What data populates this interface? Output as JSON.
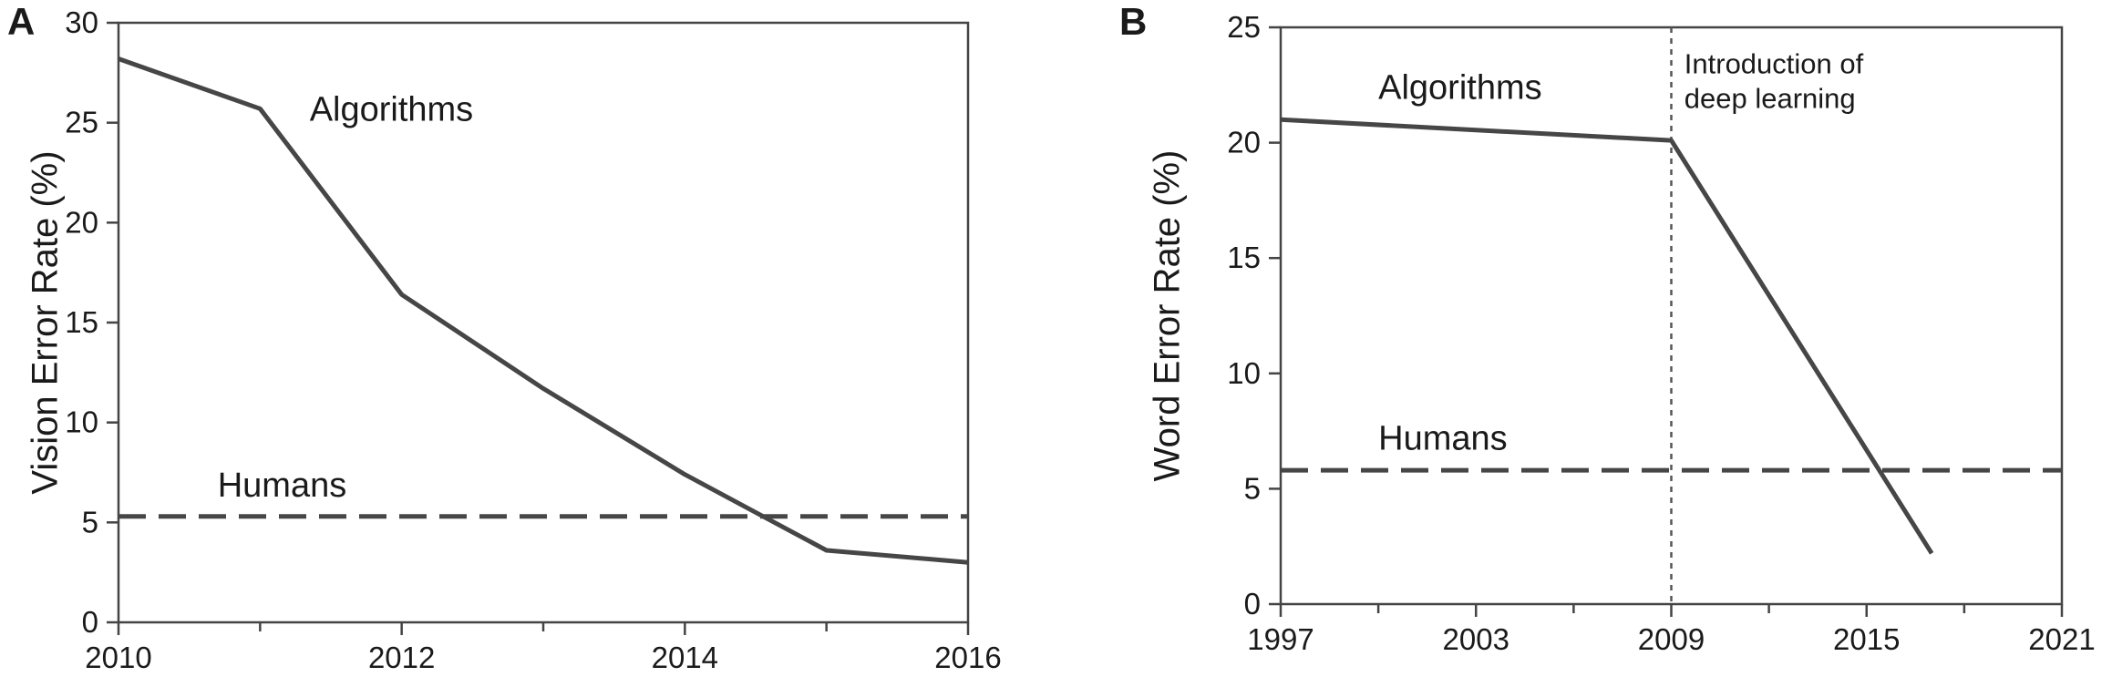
{
  "chart_data": [
    {
      "type": "line",
      "panel": "A",
      "ylabel": "Vision Error Rate (%)",
      "xlim": [
        2010,
        2016
      ],
      "ylim": [
        0,
        30
      ],
      "x_major_ticks": [
        2010,
        2012,
        2014,
        2016
      ],
      "x_minor_ticks": [
        2011,
        2013,
        2015
      ],
      "y_ticks": [
        0,
        5,
        10,
        15,
        20,
        25,
        30
      ],
      "series": [
        {
          "name": "Algorithms",
          "style": "solid",
          "color": "#464646",
          "x": [
            2010,
            2011,
            2012,
            2013,
            2014,
            2015,
            2016
          ],
          "y": [
            28.2,
            25.7,
            16.4,
            11.7,
            7.4,
            3.6,
            3.0
          ]
        },
        {
          "name": "Humans",
          "style": "dashed",
          "color": "#464646",
          "x": [
            2010,
            2016
          ],
          "y": [
            5.3,
            5.3
          ]
        }
      ],
      "labels": [
        {
          "text": "Algorithms",
          "x": 2011.35,
          "y": 25.1
        },
        {
          "text": "Humans",
          "x": 2010.7,
          "y": 6.3
        }
      ]
    },
    {
      "type": "line",
      "panel": "B",
      "ylabel": "Word Error Rate (%)",
      "xlim": [
        1997,
        2021
      ],
      "ylim": [
        0,
        25
      ],
      "x_major_ticks": [
        1997,
        2003,
        2009,
        2015,
        2021
      ],
      "x_minor_ticks": [
        2000,
        2006,
        2012,
        2018
      ],
      "y_ticks": [
        0,
        5,
        10,
        15,
        20,
        25
      ],
      "series": [
        {
          "name": "Algorithms",
          "style": "solid",
          "color": "#464646",
          "x": [
            1997,
            2009,
            2017
          ],
          "y": [
            21.0,
            20.1,
            2.2
          ]
        },
        {
          "name": "Humans",
          "style": "dashed",
          "color": "#464646",
          "x": [
            1997,
            2021
          ],
          "y": [
            5.8,
            5.8
          ]
        }
      ],
      "reference_line": {
        "x": 2009,
        "style": "dotted"
      },
      "annotation": {
        "lines": [
          "Introduction of",
          "deep learning"
        ],
        "x": 2009.4,
        "y": 23.0
      },
      "labels": [
        {
          "text": "Algorithms",
          "x": 2000.0,
          "y": 21.9
        },
        {
          "text": "Humans",
          "x": 2000.0,
          "y": 6.7
        }
      ]
    }
  ]
}
